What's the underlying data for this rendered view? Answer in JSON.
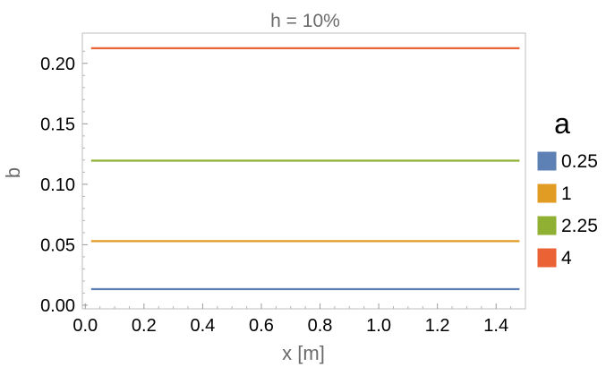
{
  "chart_data": {
    "type": "line",
    "title": "h = 10%",
    "xlabel": "x [m]",
    "ylabel": "b",
    "xlim": [
      -0.01,
      1.5
    ],
    "ylim": [
      -0.003,
      0.225
    ],
    "x_ticks": [
      "0.0",
      "0.2",
      "0.4",
      "0.6",
      "0.8",
      "1.0",
      "1.2",
      "1.4"
    ],
    "x_tick_values": [
      0.0,
      0.2,
      0.4,
      0.6,
      0.8,
      1.0,
      1.2,
      1.4
    ],
    "y_ticks": [
      "0.00",
      "0.05",
      "0.10",
      "0.15",
      "0.20"
    ],
    "y_tick_values": [
      0.0,
      0.05,
      0.1,
      0.15,
      0.2
    ],
    "grid": false,
    "legend_title": "a",
    "legend_position": "right",
    "series": [
      {
        "name": "0.25",
        "color": "#5e81b5",
        "x": [
          0.02,
          1.48
        ],
        "values": [
          0.0133,
          0.0133
        ]
      },
      {
        "name": "1",
        "color": "#e19c24",
        "x": [
          0.02,
          1.48
        ],
        "values": [
          0.053,
          0.053
        ]
      },
      {
        "name": "2.25",
        "color": "#8fb032",
        "x": [
          0.02,
          1.48
        ],
        "values": [
          0.1195,
          0.1195
        ]
      },
      {
        "name": "4",
        "color": "#eb6235",
        "x": [
          0.02,
          1.48
        ],
        "values": [
          0.2125,
          0.2125
        ]
      }
    ]
  }
}
